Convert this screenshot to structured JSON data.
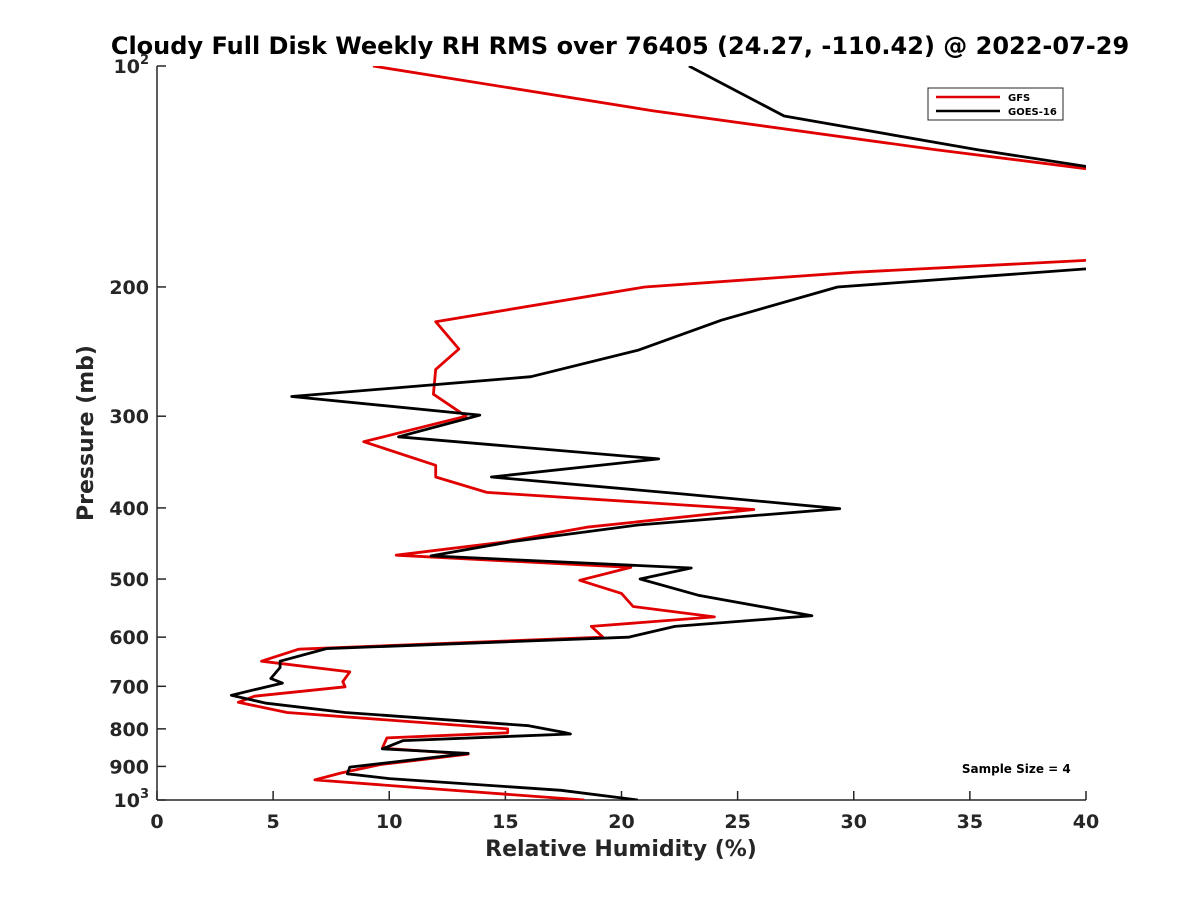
{
  "chart_data": {
    "type": "line",
    "title": "Cloudy Full Disk Weekly RH RMS over 76405 (24.27, -110.42) @ 2022-07-29",
    "xlabel": "Relative Humidity (%)",
    "ylabel": "Pressure (mb)",
    "xlim": [
      0,
      40
    ],
    "ylim": [
      100,
      1000
    ],
    "yscale": "log",
    "y_reversed": true,
    "grid": false,
    "legend_position": "top-right",
    "x_ticks": [
      "0",
      "5",
      "10",
      "15",
      "20",
      "25",
      "30",
      "35",
      "40"
    ],
    "y_ticks": [
      {
        "value": 100,
        "base": "10",
        "exp": "2"
      },
      {
        "value": 200,
        "label": "200"
      },
      {
        "value": 300,
        "label": "300"
      },
      {
        "value": 400,
        "label": "400"
      },
      {
        "value": 500,
        "label": "500"
      },
      {
        "value": 600,
        "label": "600"
      },
      {
        "value": 700,
        "label": "700"
      },
      {
        "value": 800,
        "label": "800"
      },
      {
        "value": 900,
        "label": "900"
      },
      {
        "value": 1000,
        "base": "10",
        "exp": "3"
      }
    ],
    "series": [
      {
        "name": "GFS",
        "color": "#e00000",
        "points": [
          [
            9.3,
            100
          ],
          [
            21.3,
            115
          ],
          [
            33.5,
            130
          ],
          [
            40,
            138
          ],
          [
            null,
            null
          ],
          [
            40,
            184
          ],
          [
            30,
            191
          ],
          [
            21,
            200
          ],
          [
            12,
            223
          ],
          [
            13,
            243
          ],
          [
            12,
            259
          ],
          [
            11.9,
            280
          ],
          [
            13.3,
            300
          ],
          [
            8.9,
            325
          ],
          [
            12,
            350
          ],
          [
            12,
            363
          ],
          [
            14.2,
            381
          ],
          [
            25.7,
            402
          ],
          [
            18.5,
            425
          ],
          [
            15,
            445
          ],
          [
            10.3,
            464
          ],
          [
            20.4,
            482
          ],
          [
            18.2,
            502
          ],
          [
            20,
            523
          ],
          [
            20.5,
            545
          ],
          [
            24,
            563
          ],
          [
            18.7,
            580
          ],
          [
            19.2,
            600
          ],
          [
            6.1,
            623
          ],
          [
            4.5,
            647
          ],
          [
            8.3,
            669
          ],
          [
            8,
            690
          ],
          [
            8.1,
            701
          ],
          [
            4.2,
            722
          ],
          [
            3.5,
            736
          ],
          [
            5.6,
            760
          ],
          [
            15.1,
            800
          ],
          [
            15.1,
            810
          ],
          [
            9.9,
            823
          ],
          [
            9.7,
            850
          ],
          [
            13.4,
            866
          ],
          [
            9.6,
            895
          ],
          [
            7.9,
            919
          ],
          [
            6.8,
            939
          ],
          [
            12,
            966
          ],
          [
            18.4,
            1000
          ]
        ]
      },
      {
        "name": "GOES-16",
        "color": "#000000",
        "points": [
          [
            22.9,
            100
          ],
          [
            27,
            117
          ],
          [
            35.3,
            130
          ],
          [
            40,
            137
          ],
          [
            null,
            null
          ],
          [
            40,
            189
          ],
          [
            29.3,
            200
          ],
          [
            24.3,
            222
          ],
          [
            20.7,
            244
          ],
          [
            16.1,
            265
          ],
          [
            5.8,
            282
          ],
          [
            13.9,
            299
          ],
          [
            10.4,
            320
          ],
          [
            21.6,
            343
          ],
          [
            14.4,
            363
          ],
          [
            22.7,
            383
          ],
          [
            29.4,
            401
          ],
          [
            20.7,
            422
          ],
          [
            15.2,
            445
          ],
          [
            11.8,
            465
          ],
          [
            23,
            483
          ],
          [
            20.8,
            500
          ],
          [
            23.3,
            526
          ],
          [
            28.2,
            561
          ],
          [
            22.3,
            580
          ],
          [
            20.3,
            600
          ],
          [
            7.3,
            622
          ],
          [
            5.3,
            647
          ],
          [
            5.3,
            660
          ],
          [
            4.9,
            683
          ],
          [
            5.4,
            693
          ],
          [
            4.4,
            705
          ],
          [
            3.2,
            720
          ],
          [
            4.7,
            738
          ],
          [
            8.1,
            760
          ],
          [
            16,
            792
          ],
          [
            17.6,
            810
          ],
          [
            17.8,
            813
          ],
          [
            10.6,
            830
          ],
          [
            9.7,
            852
          ],
          [
            13.4,
            864
          ],
          [
            8.3,
            902
          ],
          [
            8.2,
            921
          ],
          [
            10,
            935
          ],
          [
            17.4,
            970
          ],
          [
            20.7,
            1000
          ]
        ]
      }
    ],
    "annotations": [
      {
        "text": "Sample Size = 4",
        "x": 37,
        "y": 905
      }
    ]
  }
}
